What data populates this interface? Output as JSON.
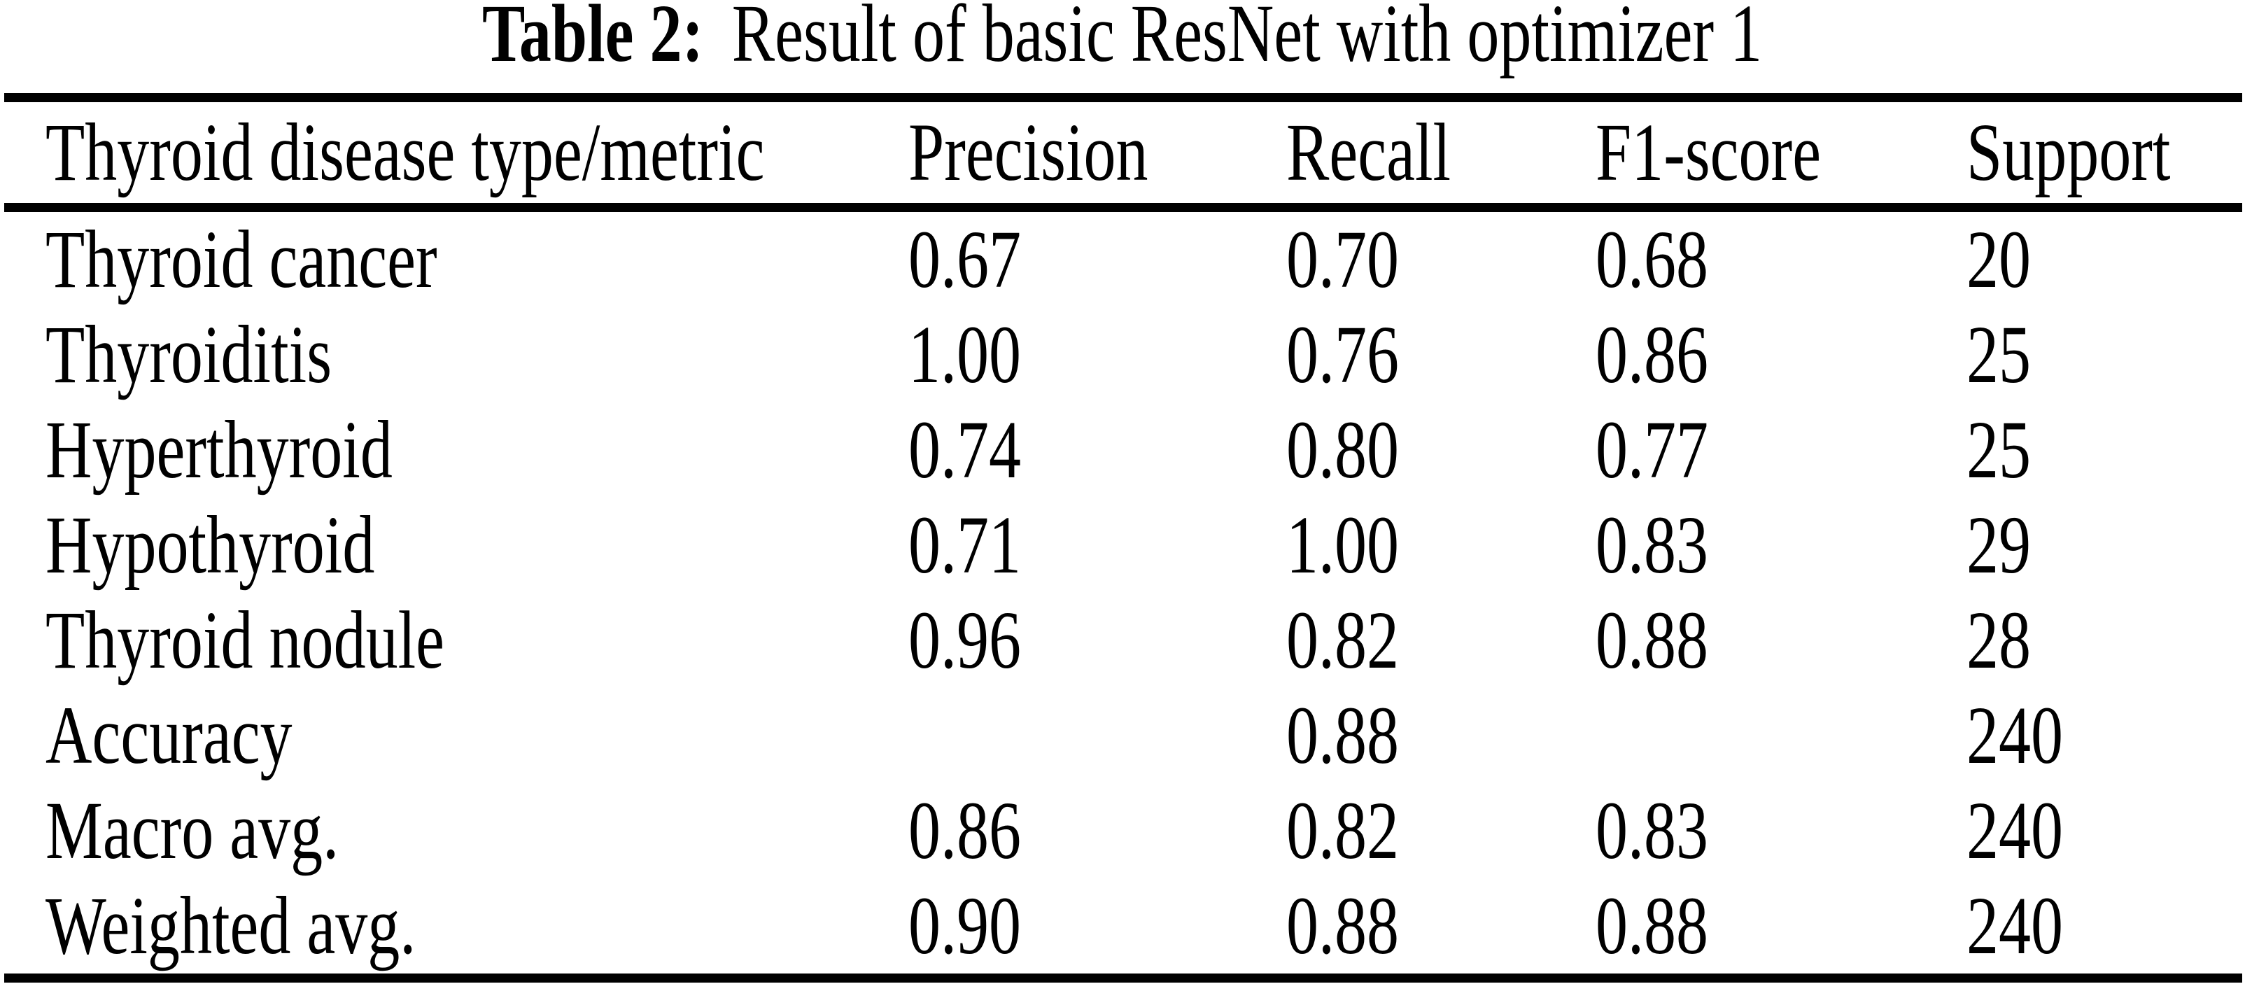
{
  "caption": {
    "label": "Table 2:",
    "text": "Result of basic ResNet with optimizer 1"
  },
  "table": {
    "columns": [
      "Thyroid disease type/metric",
      "Precision",
      "Recall",
      "F1-score",
      "Support"
    ],
    "rows": [
      [
        "Thyroid cancer",
        "0.67",
        "0.70",
        "0.68",
        "20"
      ],
      [
        "Thyroiditis",
        "1.00",
        "0.76",
        "0.86",
        "25"
      ],
      [
        "Hyperthyroid",
        "0.74",
        "0.80",
        "0.77",
        "25"
      ],
      [
        "Hypothyroid",
        "0.71",
        "1.00",
        "0.83",
        "29"
      ],
      [
        "Thyroid nodule",
        "0.96",
        "0.82",
        "0.88",
        "28"
      ],
      [
        "Accuracy",
        "",
        "0.88",
        "",
        "240"
      ],
      [
        "Macro avg.",
        "0.86",
        "0.82",
        "0.83",
        "240"
      ],
      [
        "Weighted avg.",
        "0.90",
        "0.88",
        "0.88",
        "240"
      ]
    ]
  },
  "colors": {
    "background": "#ffffff",
    "text": "#000000",
    "rule": "#000000"
  }
}
